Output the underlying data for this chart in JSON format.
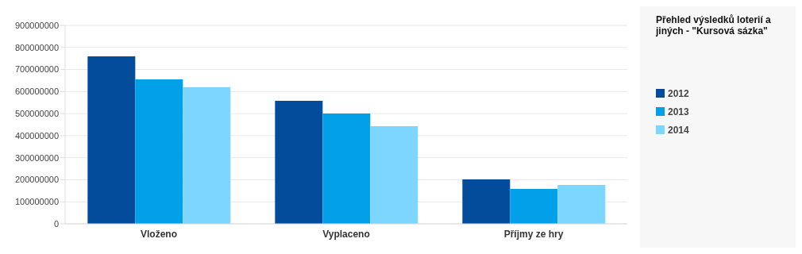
{
  "chart_data": {
    "type": "bar",
    "title": "Přehled výsledků loterií a jiných - \"Kursová sázka\"",
    "categories": [
      "Vloženo",
      "Vyplaceno",
      "Příjmy ze hry"
    ],
    "series": [
      {
        "name": "2012",
        "color": "#034c9c",
        "values": [
          760000000,
          558000000,
          202000000
        ]
      },
      {
        "name": "2013",
        "color": "#03a0ea",
        "values": [
          655000000,
          500000000,
          158000000
        ]
      },
      {
        "name": "2014",
        "color": "#7dd6ff",
        "values": [
          620000000,
          443000000,
          176000000
        ]
      }
    ],
    "ylim": [
      0,
      900000000
    ],
    "yticks": [
      0,
      100000000,
      200000000,
      300000000,
      400000000,
      500000000,
      600000000,
      700000000,
      800000000,
      900000000
    ],
    "grid": "y",
    "legend": "right"
  }
}
